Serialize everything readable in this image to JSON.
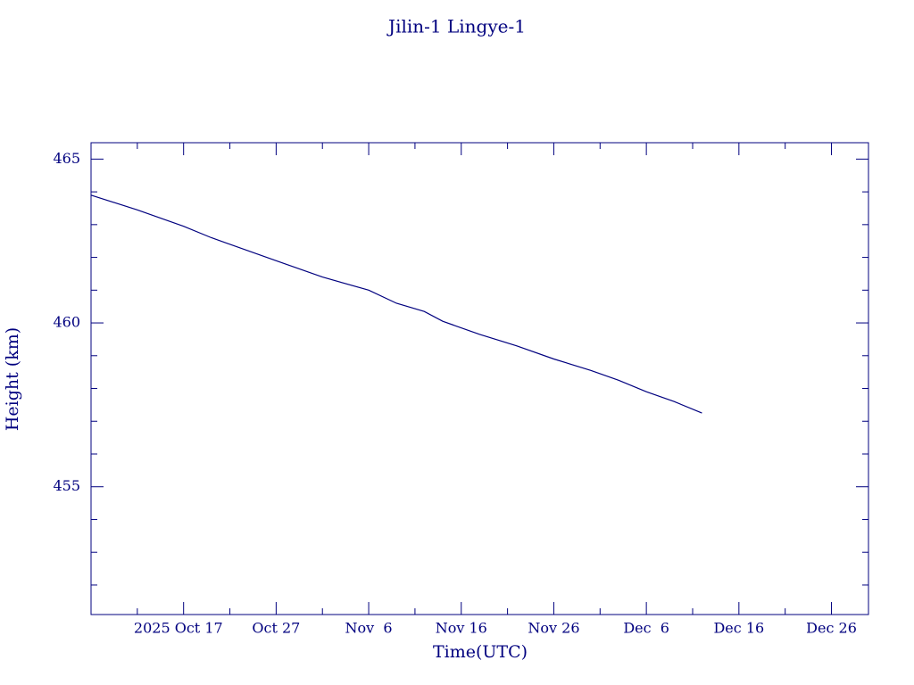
{
  "chart_data": {
    "type": "line",
    "title": "Jilin-1 Lingye-1",
    "x_label": "Time(UTC)",
    "y_label": "Height (km)",
    "color": "#00007f",
    "x": [
      "2025-10-07",
      "2025-10-12",
      "2025-10-17",
      "2025-10-20",
      "2025-10-27",
      "2025-11-01",
      "2025-11-06",
      "2025-11-09",
      "2025-11-12",
      "2025-11-14",
      "2025-11-18",
      "2025-11-22",
      "2025-11-26",
      "2025-11-30",
      "2025-12-03",
      "2025-12-06",
      "2025-12-09",
      "2025-12-12"
    ],
    "values": [
      463.9,
      463.45,
      462.95,
      462.6,
      461.9,
      461.4,
      461.0,
      460.6,
      460.35,
      460.05,
      459.65,
      459.3,
      458.9,
      458.55,
      458.25,
      457.9,
      457.6,
      457.25
    ],
    "xlim": [
      "2025-10-07",
      "2025-12-30"
    ],
    "xticks": [
      {
        "value": "2025-10-17",
        "label": "2025 Oct 17"
      },
      {
        "value": "2025-10-27",
        "label": "Oct 27"
      },
      {
        "value": "2025-11-06",
        "label": "Nov  6"
      },
      {
        "value": "2025-11-16",
        "label": "Nov 16"
      },
      {
        "value": "2025-11-26",
        "label": "Nov 26"
      },
      {
        "value": "2025-12-06",
        "label": "Dec  6"
      },
      {
        "value": "2025-12-16",
        "label": "Dec 16"
      },
      {
        "value": "2025-12-26",
        "label": "Dec 26"
      }
    ],
    "xminorticks": [
      "2025-10-12",
      "2025-10-22",
      "2025-11-01",
      "2025-11-11",
      "2025-11-21",
      "2025-12-01",
      "2025-12-11",
      "2025-12-21"
    ],
    "ylim": [
      451.1,
      465.5
    ],
    "yticks": [
      455,
      460,
      465
    ],
    "yminorticks": [
      452,
      453,
      454,
      456,
      457,
      458,
      459,
      461,
      462,
      463,
      464
    ]
  }
}
